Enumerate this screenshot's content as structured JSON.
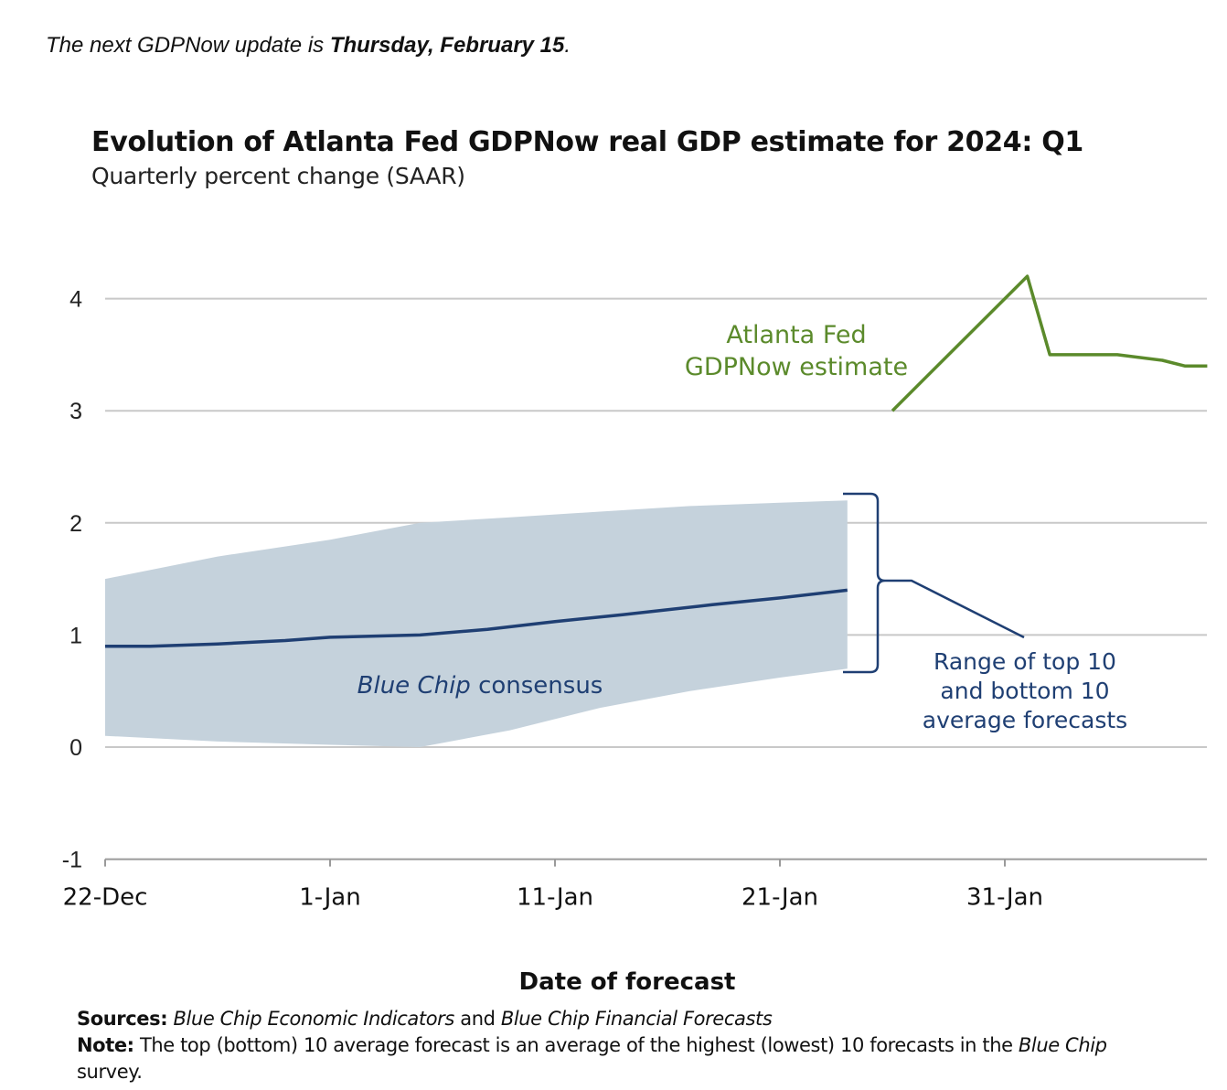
{
  "header": {
    "update_prefix": "The next GDPNow update is ",
    "update_date": "Thursday, February 15",
    "update_suffix": "."
  },
  "chart_data": {
    "type": "line",
    "title": "Evolution of Atlanta Fed GDPNow real GDP estimate for 2024: Q1",
    "subtitle": "Quarterly percent change (SAAR)",
    "xlabel": "Date of forecast",
    "ylabel": "",
    "ylim": [
      -1,
      4.3
    ],
    "yticks": [
      "-1",
      "0",
      "1",
      "2",
      "3",
      "4"
    ],
    "ytick_values": [
      -1,
      0,
      1,
      2,
      3,
      4
    ],
    "xticks": [
      "22-Dec",
      "1-Jan",
      "11-Jan",
      "21-Jan",
      "31-Jan"
    ],
    "xtick_days": [
      0,
      10,
      20,
      30,
      40
    ],
    "grid": true,
    "series": [
      {
        "name": "Atlanta Fed GDPNow estimate",
        "label_lines": [
          "Atlanta Fed",
          "GDPNow estimate"
        ],
        "color": "#5b8a2b",
        "x_days": [
          35,
          41,
          42,
          45,
          47,
          48,
          49
        ],
        "values": [
          3.0,
          4.2,
          3.5,
          3.5,
          3.45,
          3.4,
          3.4
        ]
      },
      {
        "name": "Blue Chip consensus",
        "label_italic": "Blue Chip",
        "label_plain": " consensus",
        "color": "#1f3f73",
        "x_days": [
          0,
          2,
          5,
          8,
          10,
          14,
          17,
          20,
          23,
          27,
          30,
          33
        ],
        "values": [
          0.9,
          0.9,
          0.92,
          0.95,
          0.98,
          1.0,
          1.05,
          1.12,
          1.18,
          1.27,
          1.33,
          1.4
        ]
      }
    ],
    "range_band": {
      "label_lines": [
        "Range of top 10",
        "and bottom 10",
        "average forecasts"
      ],
      "color": "#c5d2dc",
      "x_days": [
        0,
        5,
        10,
        14,
        18,
        22,
        26,
        30,
        33
      ],
      "upper": [
        1.5,
        1.7,
        1.85,
        2.0,
        2.05,
        2.1,
        2.15,
        2.18,
        2.2
      ],
      "lower": [
        0.1,
        0.05,
        0.02,
        0.0,
        0.15,
        0.35,
        0.5,
        0.62,
        0.7
      ]
    }
  },
  "footer": {
    "sources_label": "Sources:",
    "sources_text_1": "Blue Chip Economic Indicators",
    "sources_and": " and ",
    "sources_text_2": "Blue Chip Financial Forecasts",
    "note_label": "Note:",
    "note_text": " The top (bottom) 10 average forecast is an average of the highest (lowest) 10 forecasts in the ",
    "note_italic": "Blue Chip",
    "note_line2": "survey."
  }
}
